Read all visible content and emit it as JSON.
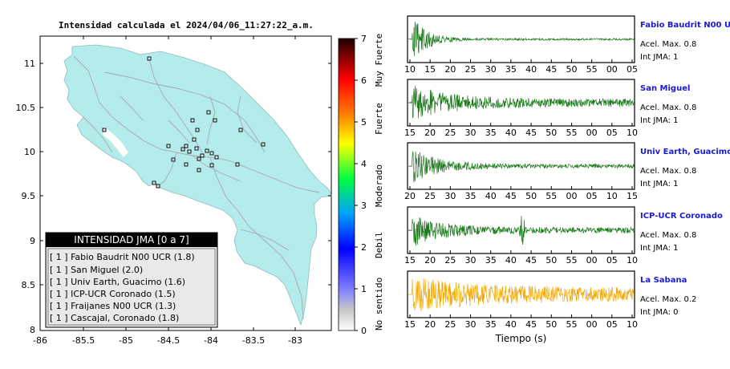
{
  "map": {
    "title": "Intensidad calculada el 2024/04/06_11:27:22_a.m.",
    "x_ticks": [
      "-86",
      "-85.5",
      "-85",
      "-84.5",
      "-84",
      "-83.5",
      "-83"
    ],
    "y_ticks": [
      "11",
      "10.5",
      "10",
      "9.5",
      "9",
      "8.5",
      "8"
    ],
    "xlim": [
      -86,
      -83.5
    ],
    "ylim": [
      8,
      11.3
    ],
    "colorbar": {
      "ticks": [
        "0",
        "1",
        "2",
        "3",
        "4",
        "5",
        "6",
        "7"
      ],
      "range": [
        0,
        7
      ],
      "labels": [
        "No sentido",
        "Debil",
        "Moderado",
        "Fuerte",
        "Muy Fuerte"
      ]
    },
    "legend": {
      "title": "INTENSIDAD JMA [0 a 7]",
      "items": [
        "[ 1 ]  Fabio Baudrit N00 UCR (1.8)",
        "[ 1 ]  San Miguel (2.0)",
        "[ 1 ]  Univ Earth, Guacimo (1.6)",
        "[ 1 ]  ICP-UCR Coronado (1.5)",
        "[ 1 ]  Fraijanes N00 UCR (1.3)",
        "[ 1 ]  Cascajal, Coronado (1.8)"
      ]
    },
    "colors": {
      "land": "#b4ecec",
      "station": "#cfeaea",
      "roads": "#a8a8a8"
    }
  },
  "chart_data": [
    {
      "type": "line",
      "title": "Fabio Baudrit N00 UCR",
      "series": [
        {
          "name": "Fabio Baudrit N00 UCR",
          "color": "#1c7a1c"
        }
      ],
      "x_ticks": [
        "10",
        "15",
        "20",
        "25",
        "30",
        "35",
        "40",
        "45",
        "50",
        "55",
        "00",
        "05"
      ],
      "accel_label": "Acel. Max. 0.8",
      "jma_label": "Int JMA: 1"
    },
    {
      "type": "line",
      "title": "San Miguel",
      "series": [
        {
          "name": "San Miguel",
          "color": "#1c7a1c"
        }
      ],
      "x_ticks": [
        "15",
        "20",
        "25",
        "30",
        "35",
        "40",
        "45",
        "50",
        "55",
        "00",
        "05",
        "10"
      ],
      "accel_label": "Acel. Max. 0.8",
      "jma_label": "Int JMA: 1"
    },
    {
      "type": "line",
      "title": "Univ Earth, Guacimo",
      "series": [
        {
          "name": "Univ Earth, Guacimo",
          "color": "#1c7a1c"
        }
      ],
      "x_ticks": [
        "20",
        "25",
        "30",
        "35",
        "40",
        "45",
        "50",
        "55",
        "00",
        "05",
        "10",
        "15"
      ],
      "accel_label": "Acel. Max. 0.8",
      "jma_label": "Int JMA: 1"
    },
    {
      "type": "line",
      "title": "ICP-UCR Coronado",
      "series": [
        {
          "name": "ICP-UCR Coronado",
          "color": "#1c7a1c"
        }
      ],
      "x_ticks": [
        "15",
        "20",
        "25",
        "30",
        "35",
        "40",
        "45",
        "50",
        "55",
        "00",
        "05",
        "10"
      ],
      "accel_label": "Acel. Max. 0.8",
      "jma_label": "Int JMA: 1"
    },
    {
      "type": "line",
      "title": "La Sabana",
      "series": [
        {
          "name": "La Sabana",
          "color": "#f5a800"
        }
      ],
      "x_ticks": [
        "15",
        "20",
        "25",
        "30",
        "35",
        "40",
        "45",
        "50",
        "55",
        "00",
        "05",
        "10"
      ],
      "accel_label": "Acel. Max. 0.2",
      "jma_label": "Int JMA: 0",
      "xlabel": "Tiempo (s)"
    }
  ]
}
